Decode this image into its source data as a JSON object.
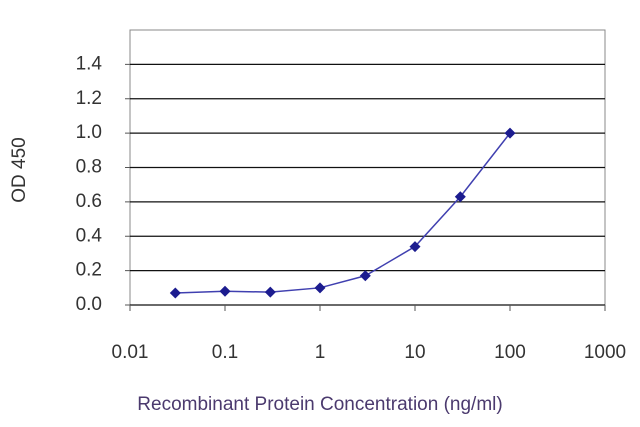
{
  "chart_data": {
    "type": "line",
    "xlabel": "Recombinant Protein Concentration (ng/ml)",
    "ylabel": "OD 450",
    "x": [
      0.03,
      0.1,
      0.3,
      1,
      3,
      10,
      30,
      100
    ],
    "values": [
      0.07,
      0.08,
      0.075,
      0.1,
      0.17,
      0.34,
      0.63,
      1.0
    ],
    "color": "#1c1c8f",
    "line_color": "#4040b0",
    "xlim": [
      0.01,
      1000
    ],
    "xlog": true,
    "xticks": [
      0.01,
      0.1,
      1,
      10,
      100,
      1000
    ],
    "ylim": [
      0,
      1.6
    ],
    "yticks": [
      {
        "value": 0,
        "label": "0.0"
      },
      0.2,
      0.4,
      0.6,
      0.8,
      {
        "value": 1,
        "label": "1.0"
      },
      1.2,
      1.4
    ],
    "grid": true
  }
}
